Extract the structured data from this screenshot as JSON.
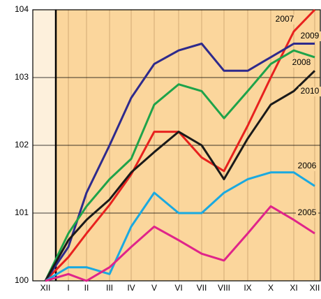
{
  "chart_data": {
    "type": "line",
    "categories": [
      "XII",
      "I",
      "II",
      "III",
      "IV",
      "V",
      "VI",
      "VII",
      "VIII",
      "IX",
      "X",
      "XI",
      "XII"
    ],
    "series": [
      {
        "name": "2007",
        "color": "#e8211e",
        "values": [
          100,
          100.35,
          100.7,
          101.12,
          101.57,
          102.2,
          102.2,
          101.82,
          101.62,
          102.29,
          103.0,
          103.68,
          104
        ]
      },
      {
        "name": "2009",
        "color": "#2e2a8c",
        "values": [
          100,
          100.5,
          101.3,
          102.0,
          102.7,
          103.2,
          103.4,
          103.5,
          103.1,
          103.1,
          103.3,
          103.5,
          103.5
        ]
      },
      {
        "name": "2008",
        "color": "#1ea34a",
        "values": [
          100,
          100.7,
          101.1,
          101.5,
          101.8,
          102.6,
          102.9,
          102.8,
          102.4,
          102.8,
          103.2,
          103.4,
          103.3
        ]
      },
      {
        "name": "2010",
        "color": "#1a1a1a",
        "values": [
          100,
          100.6,
          100.9,
          101.2,
          101.6,
          101.9,
          102.2,
          102.0,
          101.5,
          102.1,
          102.6,
          102.8,
          103.1
        ]
      },
      {
        "name": "2006",
        "color": "#1aa9e0",
        "values": [
          100,
          100.2,
          100.2,
          100.1,
          100.8,
          101.3,
          101.0,
          101.0,
          101.3,
          101.5,
          101.6,
          101.6,
          101.4
        ]
      },
      {
        "name": "2005",
        "color": "#e0248a",
        "values": [
          100,
          100.1,
          100.0,
          100.2,
          100.5,
          100.8,
          100.6,
          100.4,
          100.3,
          100.7,
          101.1,
          100.9,
          100.7
        ]
      }
    ],
    "ylim": [
      100,
      104
    ],
    "yticks": [
      100,
      101,
      102,
      103,
      104
    ],
    "grid": true
  }
}
